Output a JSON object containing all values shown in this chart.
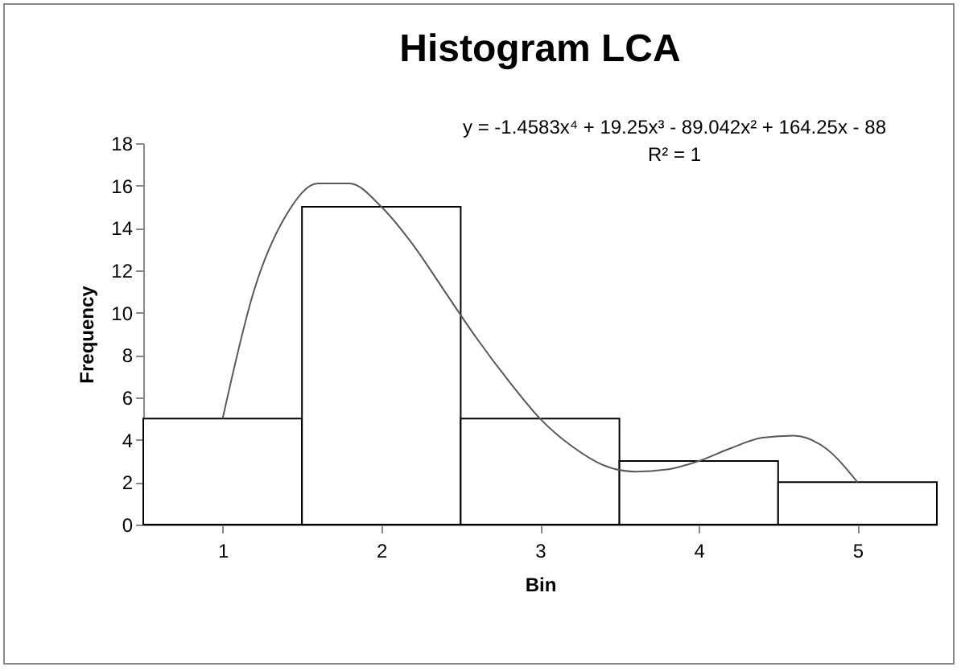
{
  "chart_data": {
    "type": "bar",
    "title": "Histogram LCA",
    "xlabel": "Bin",
    "ylabel": "Frequency",
    "x": [
      1,
      2,
      3,
      4,
      5
    ],
    "xlim": [
      0.5,
      5.5
    ],
    "xticks": [
      1,
      2,
      3,
      4,
      5
    ],
    "series": [
      {
        "color": "#ffffff",
        "values": [
          5,
          15,
          5,
          3,
          2
        ]
      },
      {
        "type": "line",
        "color": "#595959",
        "x": [
          1,
          1.2,
          1.4,
          1.6,
          1.8,
          2,
          2.2,
          2.4,
          2.6,
          2.8,
          3,
          3.2,
          3.4,
          3.6,
          3.8,
          4,
          4.2,
          4.4,
          4.6,
          4.8,
          5
        ],
        "values": [
          5,
          11.1,
          14.6,
          16.1,
          16.1,
          15,
          13.2,
          11,
          8.8,
          6.8,
          5,
          3.7,
          2.8,
          2.5,
          2.6,
          3,
          3.6,
          4.1,
          4.2,
          3.6,
          2
        ]
      }
    ],
    "ylim": [
      0,
      18
    ],
    "yticks": [
      0,
      2,
      4,
      6,
      8,
      10,
      12,
      14,
      16,
      18
    ],
    "annotations": [
      "y = -1.4583x⁴ + 19.25x³ - 89.042x² + 164.25x - 88",
      "R² = 1"
    ]
  }
}
